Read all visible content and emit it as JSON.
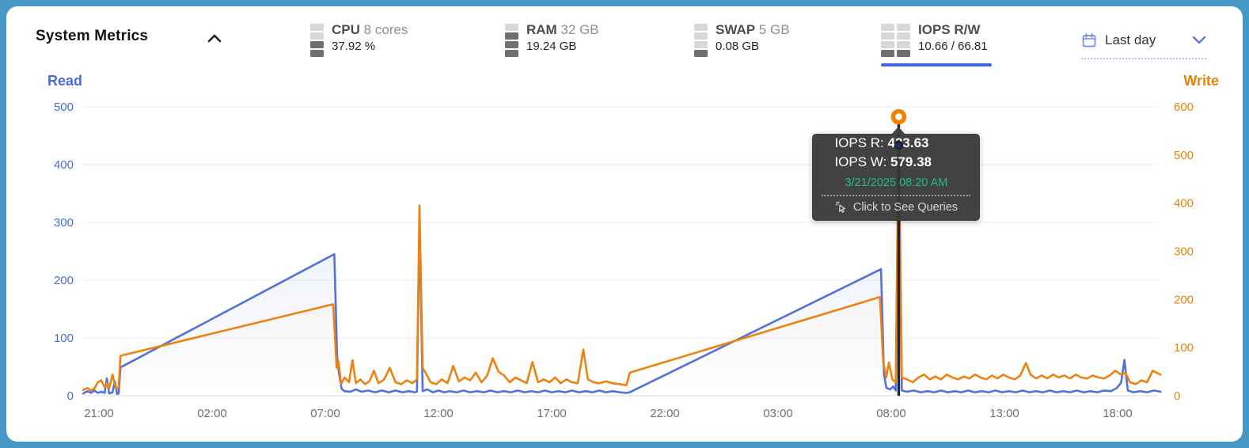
{
  "colors": {
    "frame": "#4697c4",
    "accent": "#4263e6",
    "read": "#5272d8",
    "write": "#ed820e",
    "read_label": "#4a6be0",
    "write_label": "#e8820a",
    "grid": "#ededed",
    "baseline": "#d8d8d8",
    "tick_x": "#6f6f6f",
    "tooltip_green": "#1dbd82"
  },
  "header": {
    "title": "System Metrics",
    "collapse_icon": "chevron-up",
    "metrics": [
      {
        "label": "CPU",
        "sublabel": "8 cores",
        "value": "37.92 %",
        "active": false,
        "gauge": [
          0,
          0,
          1,
          1
        ],
        "cols": 1
      },
      {
        "label": "RAM",
        "sublabel": "32 GB",
        "value": "19.24 GB",
        "active": false,
        "gauge": [
          0,
          1,
          1,
          1
        ],
        "cols": 1
      },
      {
        "label": "SWAP",
        "sublabel": "5 GB",
        "value": "0.08 GB",
        "active": false,
        "gauge": [
          0,
          0,
          0,
          1
        ],
        "cols": 1
      },
      {
        "label": "IOPS R/W",
        "sublabel": "",
        "value": "10.66 / 66.81",
        "active": true,
        "gauge": [
          0,
          0,
          0,
          1
        ],
        "cols": 2
      }
    ],
    "range_picker": {
      "label": "Last day",
      "icon": "calendar"
    }
  },
  "chart_data": {
    "type": "line",
    "x_axis": {
      "tick_labels": [
        "21:00",
        "02:00",
        "07:00",
        "12:00",
        "17:00",
        "22:00",
        "03:00",
        "08:00",
        "13:00",
        "18:00"
      ],
      "tick_hours": [
        0,
        5,
        10,
        15,
        20,
        25,
        30,
        35,
        40,
        45
      ],
      "domain_hours": [
        -0.7,
        46.9
      ]
    },
    "y_left": {
      "title": "Read",
      "ticks": [
        0,
        100,
        200,
        300,
        400,
        500
      ],
      "range": [
        0,
        500
      ]
    },
    "y_right": {
      "title": "Write",
      "ticks": [
        0,
        100,
        200,
        300,
        400,
        500,
        600
      ],
      "range": [
        0,
        600
      ]
    },
    "grid": true,
    "legend_position": "none",
    "series": [
      {
        "name": "Read",
        "axis": "left",
        "color": "#5272d8",
        "points": [
          [
            -0.7,
            4
          ],
          [
            -0.5,
            8
          ],
          [
            -0.35,
            5
          ],
          [
            -0.2,
            9
          ],
          [
            -0.05,
            5
          ],
          [
            0.1,
            7
          ],
          [
            0.25,
            5
          ],
          [
            0.35,
            30
          ],
          [
            0.45,
            4
          ],
          [
            0.6,
            6
          ],
          [
            0.7,
            25
          ],
          [
            0.8,
            3
          ],
          [
            0.87,
            4
          ],
          [
            0.95,
            49
          ],
          [
            10.4,
            245
          ],
          [
            10.52,
            68
          ],
          [
            10.6,
            40
          ],
          [
            10.72,
            12
          ],
          [
            10.85,
            8
          ],
          [
            11.1,
            7
          ],
          [
            11.35,
            11
          ],
          [
            11.6,
            7
          ],
          [
            11.9,
            9
          ],
          [
            12.2,
            6
          ],
          [
            12.5,
            9
          ],
          [
            12.8,
            6
          ],
          [
            13.1,
            9
          ],
          [
            13.4,
            6
          ],
          [
            13.7,
            8
          ],
          [
            13.95,
            6
          ],
          [
            14.05,
            7
          ],
          [
            14.16,
            301
          ],
          [
            14.3,
            8
          ],
          [
            14.5,
            11
          ],
          [
            14.75,
            6
          ],
          [
            15.0,
            9
          ],
          [
            15.25,
            6
          ],
          [
            15.5,
            8
          ],
          [
            15.8,
            6
          ],
          [
            16.1,
            9
          ],
          [
            16.4,
            6
          ],
          [
            16.7,
            8
          ],
          [
            17.0,
            6
          ],
          [
            17.3,
            9
          ],
          [
            17.6,
            6
          ],
          [
            17.9,
            8
          ],
          [
            18.2,
            6
          ],
          [
            18.5,
            9
          ],
          [
            18.8,
            6
          ],
          [
            19.1,
            8
          ],
          [
            19.4,
            6
          ],
          [
            19.7,
            9
          ],
          [
            20.0,
            6
          ],
          [
            20.3,
            8
          ],
          [
            20.6,
            6
          ],
          [
            20.9,
            9
          ],
          [
            21.2,
            6
          ],
          [
            21.5,
            8
          ],
          [
            21.8,
            6
          ],
          [
            22.1,
            9
          ],
          [
            22.4,
            6
          ],
          [
            22.7,
            8
          ],
          [
            23.0,
            6
          ],
          [
            23.3,
            5
          ],
          [
            23.45,
            6
          ],
          [
            34.55,
            219
          ],
          [
            34.68,
            38
          ],
          [
            34.78,
            14
          ],
          [
            34.95,
            11
          ],
          [
            35.08,
            16
          ],
          [
            35.2,
            9
          ],
          [
            35.33,
            433.63
          ],
          [
            35.47,
            9
          ],
          [
            35.7,
            7
          ],
          [
            36.0,
            9
          ],
          [
            36.3,
            6
          ],
          [
            36.6,
            8
          ],
          [
            36.9,
            6
          ],
          [
            37.2,
            9
          ],
          [
            37.5,
            6
          ],
          [
            37.8,
            8
          ],
          [
            38.1,
            6
          ],
          [
            38.4,
            9
          ],
          [
            38.7,
            6
          ],
          [
            39.0,
            8
          ],
          [
            39.3,
            6
          ],
          [
            39.6,
            9
          ],
          [
            39.9,
            6
          ],
          [
            40.2,
            8
          ],
          [
            40.5,
            6
          ],
          [
            40.8,
            9
          ],
          [
            41.1,
            6
          ],
          [
            41.4,
            8
          ],
          [
            41.7,
            6
          ],
          [
            42.0,
            9
          ],
          [
            42.3,
            6
          ],
          [
            42.6,
            8
          ],
          [
            42.9,
            6
          ],
          [
            43.2,
            9
          ],
          [
            43.5,
            6
          ],
          [
            43.8,
            8
          ],
          [
            44.1,
            6
          ],
          [
            44.4,
            9
          ],
          [
            44.7,
            8
          ],
          [
            44.95,
            13
          ],
          [
            45.15,
            22
          ],
          [
            45.3,
            62
          ],
          [
            45.45,
            9
          ],
          [
            45.7,
            6
          ],
          [
            46.0,
            8
          ],
          [
            46.3,
            6
          ],
          [
            46.6,
            9
          ],
          [
            46.9,
            7
          ]
        ]
      },
      {
        "name": "Write",
        "axis": "right",
        "color": "#ed820e",
        "points": [
          [
            -0.7,
            12
          ],
          [
            -0.5,
            16
          ],
          [
            -0.35,
            11
          ],
          [
            -0.2,
            15
          ],
          [
            -0.05,
            28
          ],
          [
            0.1,
            32
          ],
          [
            0.25,
            18
          ],
          [
            0.35,
            26
          ],
          [
            0.45,
            15
          ],
          [
            0.6,
            44
          ],
          [
            0.7,
            24
          ],
          [
            0.8,
            14
          ],
          [
            0.87,
            17
          ],
          [
            0.95,
            83
          ],
          [
            10.35,
            190
          ],
          [
            10.5,
            58
          ],
          [
            10.58,
            72
          ],
          [
            10.7,
            24
          ],
          [
            10.85,
            38
          ],
          [
            11.05,
            28
          ],
          [
            11.2,
            74
          ],
          [
            11.35,
            26
          ],
          [
            11.55,
            34
          ],
          [
            11.75,
            24
          ],
          [
            11.95,
            30
          ],
          [
            12.15,
            52
          ],
          [
            12.35,
            26
          ],
          [
            12.6,
            34
          ],
          [
            12.85,
            58
          ],
          [
            13.1,
            28
          ],
          [
            13.35,
            24
          ],
          [
            13.6,
            32
          ],
          [
            13.85,
            26
          ],
          [
            14.05,
            34
          ],
          [
            14.16,
            395
          ],
          [
            14.3,
            58
          ],
          [
            14.45,
            46
          ],
          [
            14.65,
            28
          ],
          [
            14.9,
            24
          ],
          [
            15.15,
            34
          ],
          [
            15.4,
            26
          ],
          [
            15.65,
            62
          ],
          [
            15.9,
            30
          ],
          [
            16.15,
            38
          ],
          [
            16.4,
            32
          ],
          [
            16.65,
            48
          ],
          [
            16.9,
            28
          ],
          [
            17.15,
            42
          ],
          [
            17.4,
            78
          ],
          [
            17.65,
            50
          ],
          [
            17.9,
            42
          ],
          [
            18.15,
            28
          ],
          [
            18.4,
            38
          ],
          [
            18.65,
            32
          ],
          [
            18.9,
            26
          ],
          [
            19.15,
            70
          ],
          [
            19.4,
            28
          ],
          [
            19.65,
            34
          ],
          [
            19.9,
            28
          ],
          [
            20.15,
            38
          ],
          [
            20.4,
            26
          ],
          [
            20.65,
            34
          ],
          [
            20.9,
            28
          ],
          [
            21.15,
            26
          ],
          [
            21.4,
            96
          ],
          [
            21.6,
            34
          ],
          [
            21.85,
            28
          ],
          [
            22.1,
            26
          ],
          [
            22.4,
            30
          ],
          [
            22.7,
            26
          ],
          [
            23.0,
            24
          ],
          [
            23.3,
            22
          ],
          [
            23.45,
            48
          ],
          [
            34.5,
            205
          ],
          [
            34.65,
            68
          ],
          [
            34.78,
            38
          ],
          [
            34.9,
            69
          ],
          [
            35.05,
            34
          ],
          [
            35.2,
            28
          ],
          [
            35.33,
            579.38
          ],
          [
            35.47,
            38
          ],
          [
            35.7,
            34
          ],
          [
            35.95,
            28
          ],
          [
            36.2,
            38
          ],
          [
            36.45,
            44
          ],
          [
            36.7,
            34
          ],
          [
            36.95,
            40
          ],
          [
            37.2,
            34
          ],
          [
            37.45,
            44
          ],
          [
            37.7,
            38
          ],
          [
            37.95,
            34
          ],
          [
            38.2,
            40
          ],
          [
            38.45,
            36
          ],
          [
            38.7,
            44
          ],
          [
            38.95,
            38
          ],
          [
            39.2,
            34
          ],
          [
            39.45,
            42
          ],
          [
            39.7,
            36
          ],
          [
            39.95,
            44
          ],
          [
            40.2,
            38
          ],
          [
            40.45,
            34
          ],
          [
            40.7,
            42
          ],
          [
            40.95,
            68
          ],
          [
            41.15,
            44
          ],
          [
            41.4,
            36
          ],
          [
            41.65,
            42
          ],
          [
            41.9,
            36
          ],
          [
            42.15,
            44
          ],
          [
            42.4,
            38
          ],
          [
            42.65,
            42
          ],
          [
            42.9,
            36
          ],
          [
            43.15,
            44
          ],
          [
            43.4,
            38
          ],
          [
            43.65,
            36
          ],
          [
            43.9,
            42
          ],
          [
            44.15,
            38
          ],
          [
            44.4,
            36
          ],
          [
            44.65,
            42
          ],
          [
            44.9,
            52
          ],
          [
            45.15,
            44
          ],
          [
            45.35,
            48
          ],
          [
            45.55,
            28
          ],
          [
            45.8,
            24
          ],
          [
            46.05,
            32
          ],
          [
            46.3,
            28
          ],
          [
            46.55,
            52
          ],
          [
            46.8,
            46
          ],
          [
            46.9,
            44
          ]
        ]
      }
    ]
  },
  "tooltip": {
    "rows": [
      {
        "label": "IOPS R: ",
        "value": "433.63"
      },
      {
        "label": "IOPS W: ",
        "value": "579.38"
      }
    ],
    "datetime": "3/21/2025 08:20 AM",
    "action": "Click to See Queries",
    "marker": {
      "x_hours": 35.33,
      "write_value": 579.38,
      "read_value": 433.63
    }
  }
}
